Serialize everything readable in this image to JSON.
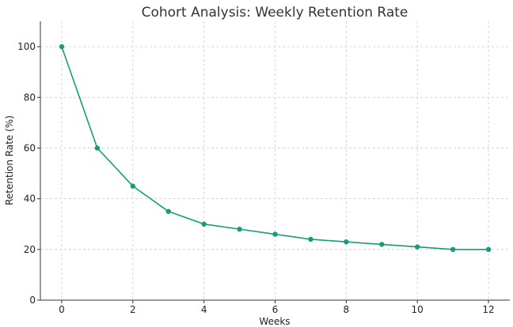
{
  "chart_data": {
    "type": "line",
    "title": "Cohort Analysis: Weekly Retention Rate",
    "xlabel": "Weeks",
    "ylabel": "Retention Rate (%)",
    "x": [
      0,
      1,
      2,
      3,
      4,
      5,
      6,
      7,
      8,
      9,
      10,
      11,
      12
    ],
    "series": [
      {
        "values": [
          100,
          60,
          45,
          35,
          30,
          28,
          26,
          24,
          23,
          22,
          21,
          20,
          20
        ],
        "color": "#169c7b",
        "marker": "circle"
      }
    ],
    "xlim": [
      -0.6,
      12.6
    ],
    "ylim": [
      0,
      110
    ],
    "xticks": [
      0,
      2,
      4,
      6,
      8,
      10,
      12
    ],
    "yticks": [
      0,
      20,
      40,
      60,
      80,
      100
    ],
    "grid": true,
    "grid_style": "dashed",
    "legend": "none"
  }
}
